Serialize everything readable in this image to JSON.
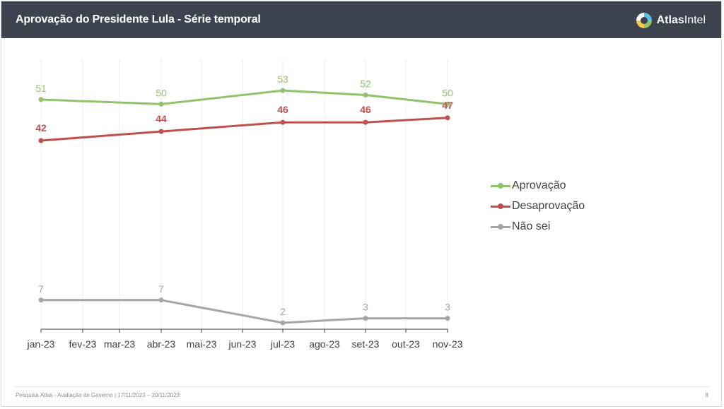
{
  "header": {
    "title": "Aprovação do Presidente Lula - Série temporal",
    "brand_bold": "Atlas",
    "brand_regular": "Intel",
    "logo_icon": "atlasintel-logo-icon"
  },
  "chart_data": {
    "type": "line",
    "categories": [
      "jan-23",
      "fev-23",
      "mar-23",
      "abr-23",
      "mai-23",
      "jun-23",
      "jul-23",
      "ago-23",
      "set-23",
      "out-23",
      "nov-23"
    ],
    "series": [
      {
        "name": "Aprovação",
        "color": "#92c36b",
        "points": [
          {
            "x": "jan-23",
            "y": 51
          },
          {
            "x": "abr-23",
            "y": 50
          },
          {
            "x": "jul-23",
            "y": 53
          },
          {
            "x": "set-23",
            "y": 52
          },
          {
            "x": "nov-23",
            "y": 50
          }
        ]
      },
      {
        "name": "Desaprovação",
        "color": "#c0504d",
        "points": [
          {
            "x": "jan-23",
            "y": 42
          },
          {
            "x": "abr-23",
            "y": 44
          },
          {
            "x": "jul-23",
            "y": 46
          },
          {
            "x": "set-23",
            "y": 46
          },
          {
            "x": "nov-23",
            "y": 47
          }
        ]
      },
      {
        "name": "Não sei",
        "color": "#a6a6a6",
        "points": [
          {
            "x": "jan-23",
            "y": 7
          },
          {
            "x": "abr-23",
            "y": 7
          },
          {
            "x": "jul-23",
            "y": 2
          },
          {
            "x": "set-23",
            "y": 3
          },
          {
            "x": "nov-23",
            "y": 3
          }
        ]
      }
    ],
    "title": "",
    "xlabel": "",
    "ylabel": "",
    "grid": "vertical",
    "legend_position": "right"
  },
  "footer": {
    "source": "Pesquisa Atlas - Avaliação de Governo | 17/11/2023 – 20/11/2023",
    "page_number": "8"
  }
}
